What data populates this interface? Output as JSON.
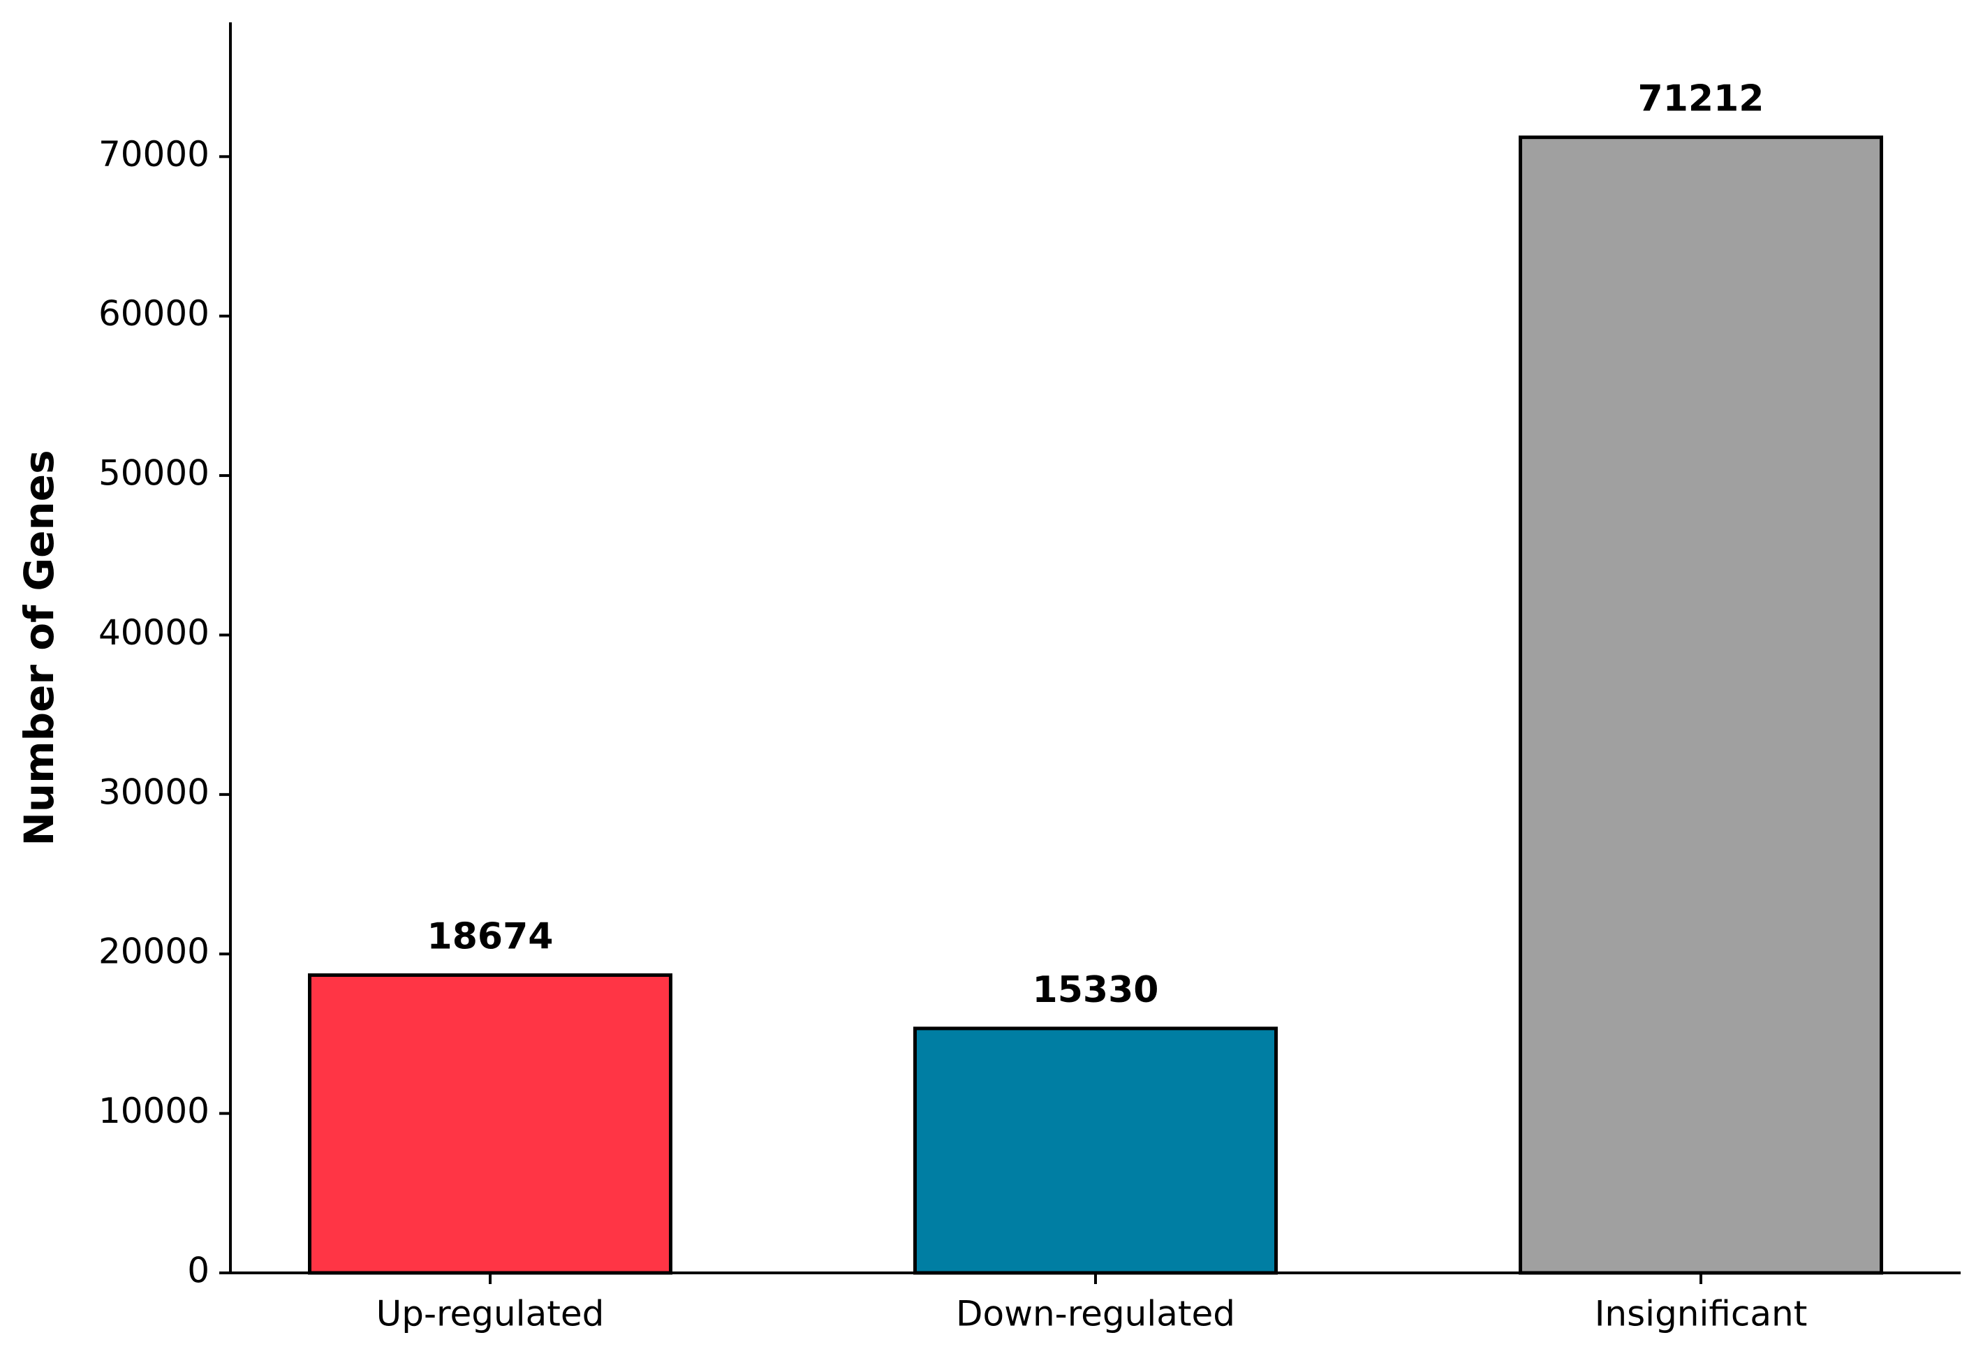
{
  "chart_data": {
    "type": "bar",
    "y_label": "Number of Genes",
    "categories": [
      "Up-regulated",
      "Down-regulated",
      "Insignificant"
    ],
    "values": [
      18674,
      15330,
      71212
    ],
    "colors": [
      "#ff3545",
      "#007ea3",
      "#a0a0a0"
    ],
    "edge_color": "#000000",
    "ylim": [
      0,
      78333
    ],
    "yticks": [
      0,
      10000,
      20000,
      30000,
      40000,
      50000,
      60000,
      70000
    ],
    "grid": false
  }
}
